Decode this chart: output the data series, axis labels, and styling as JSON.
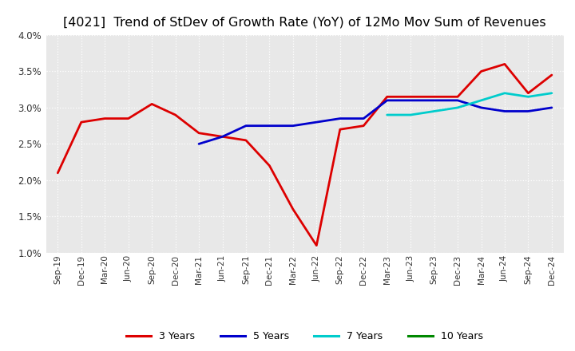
{
  "title": "[4021]  Trend of StDev of Growth Rate (YoY) of 12Mo Mov Sum of Revenues",
  "title_fontsize": 11.5,
  "xlabel": "",
  "ylabel": "",
  "ylim": [
    0.01,
    0.04
  ],
  "ytick_values": [
    0.01,
    0.015,
    0.02,
    0.025,
    0.03,
    0.035,
    0.04
  ],
  "background_color": "#ffffff",
  "plot_bg_color": "#e8e8e8",
  "grid_color": "#ffffff",
  "x_labels": [
    "Sep-19",
    "Dec-19",
    "Mar-20",
    "Jun-20",
    "Sep-20",
    "Dec-20",
    "Mar-21",
    "Jun-21",
    "Sep-21",
    "Dec-21",
    "Mar-22",
    "Jun-22",
    "Sep-22",
    "Dec-22",
    "Mar-23",
    "Jun-23",
    "Sep-23",
    "Dec-23",
    "Mar-24",
    "Jun-24",
    "Sep-24",
    "Dec-24"
  ],
  "series": {
    "3 Years": {
      "color": "#dd0000",
      "linewidth": 2.0,
      "data": [
        0.021,
        0.028,
        0.0285,
        0.0285,
        0.0305,
        0.029,
        0.0265,
        0.026,
        0.0255,
        0.022,
        0.016,
        0.011,
        0.027,
        0.0275,
        0.0315,
        0.0315,
        0.0315,
        0.0315,
        0.035,
        0.036,
        0.032,
        0.0345
      ]
    },
    "5 Years": {
      "color": "#0000cc",
      "linewidth": 2.0,
      "data": [
        null,
        null,
        null,
        null,
        null,
        null,
        0.025,
        0.026,
        0.0275,
        0.0275,
        0.0275,
        0.028,
        0.0285,
        0.0285,
        0.031,
        0.031,
        0.031,
        0.031,
        0.03,
        0.0295,
        0.0295,
        0.03
      ]
    },
    "7 Years": {
      "color": "#00cccc",
      "linewidth": 2.0,
      "data": [
        null,
        null,
        null,
        null,
        null,
        null,
        null,
        null,
        null,
        null,
        null,
        null,
        null,
        null,
        0.029,
        0.029,
        0.0295,
        0.03,
        0.031,
        0.032,
        0.0315,
        0.032
      ]
    },
    "10 Years": {
      "color": "#008800",
      "linewidth": 2.0,
      "data": [
        null,
        null,
        null,
        null,
        null,
        null,
        null,
        null,
        null,
        null,
        null,
        null,
        null,
        null,
        null,
        null,
        null,
        null,
        null,
        null,
        null,
        null
      ]
    }
  },
  "legend_labels": [
    "3 Years",
    "5 Years",
    "7 Years",
    "10 Years"
  ],
  "legend_colors": [
    "#dd0000",
    "#0000cc",
    "#00cccc",
    "#008800"
  ]
}
